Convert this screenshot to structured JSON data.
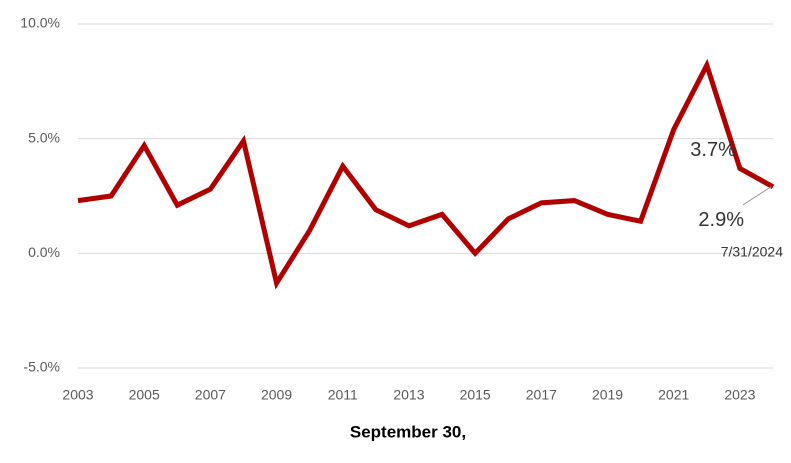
{
  "chart_data": {
    "type": "line",
    "x_label": "September 30,",
    "categories": [
      "2003",
      null,
      "2005",
      null,
      "2007",
      null,
      "2009",
      null,
      "2011",
      null,
      "2013",
      null,
      "2015",
      null,
      "2017",
      null,
      "2019",
      null,
      "2021",
      null,
      "2023",
      null
    ],
    "series": [
      {
        "color": "#b00000",
        "values": [
          2.3,
          2.5,
          4.7,
          2.1,
          2.8,
          4.9,
          -1.3,
          1.0,
          3.8,
          1.9,
          1.2,
          1.7,
          0.0,
          1.5,
          2.2,
          2.3,
          1.7,
          1.4,
          5.4,
          8.2,
          3.7,
          2.9
        ]
      }
    ],
    "ylim": [
      -5,
      10
    ],
    "yticks": [
      {
        "value": -5,
        "label": "-5.0%"
      },
      {
        "value": 0,
        "label": "0.0%"
      },
      {
        "value": 5,
        "label": "5.0%"
      },
      {
        "value": 10,
        "label": "10.0%"
      }
    ],
    "grid": true,
    "annotations": [
      {
        "text": "3.7%",
        "index": 20
      },
      {
        "text": "2.9%",
        "index": 21
      },
      {
        "text": "7/31/2024",
        "index": 21
      }
    ]
  }
}
